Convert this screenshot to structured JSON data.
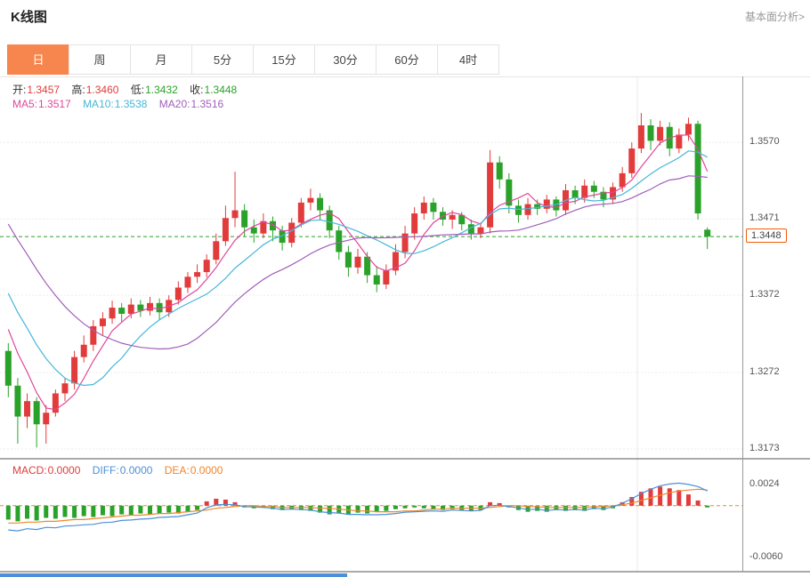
{
  "header": {
    "title": "K线图",
    "analysis_link": "基本面分析>"
  },
  "tabs": [
    {
      "label": "日",
      "name": "day",
      "active": true
    },
    {
      "label": "周",
      "name": "week",
      "active": false
    },
    {
      "label": "月",
      "name": "month",
      "active": false
    },
    {
      "label": "5分",
      "name": "5min",
      "active": false
    },
    {
      "label": "15分",
      "name": "15min",
      "active": false
    },
    {
      "label": "30分",
      "name": "30min",
      "active": false
    },
    {
      "label": "60分",
      "name": "60min",
      "active": false
    },
    {
      "label": "4时",
      "name": "4hour",
      "active": false
    }
  ],
  "kline_legend": {
    "open_label": "开:",
    "open": "1.3457",
    "high_label": "高:",
    "high": "1.3460",
    "low_label": "低:",
    "low": "1.3432",
    "close_label": "收:",
    "close": "1.3448"
  },
  "ma_legend": {
    "ma5_label": "MA5:",
    "ma5": "1.3517",
    "ma10_label": "MA10:",
    "ma10": "1.3538",
    "ma20_label": "MA20:",
    "ma20": "1.3516"
  },
  "macd_legend": {
    "macd_label": "MACD:",
    "macd": "0.0000",
    "diff_label": "DIFF:",
    "diff": "0.0000",
    "dea_label": "DEA:",
    "dea": "0.0000"
  },
  "axis": {
    "current_label": "1.3448"
  },
  "colors": {
    "up": "#e23b3b",
    "down": "#2aa22a",
    "ma5": "#e0469b",
    "ma10": "#45b7d8",
    "ma20": "#a05fb8",
    "diff": "#4a90d9",
    "dea": "#f0862a",
    "accent": "#f7854e",
    "tag_border": "#f25c05"
  },
  "chart_data": {
    "type": "candlestick",
    "title": "K线图",
    "legend_position": "top-left",
    "grid": true,
    "price_ticks": [
      1.357,
      1.3471,
      1.3372,
      1.3272,
      1.3173
    ],
    "current_price": 1.3448,
    "price_range": [
      1.3165,
      1.3653
    ],
    "macd_ticks": [
      0.0024,
      -0.006
    ],
    "macd_range": [
      -0.0075,
      0.005
    ],
    "ma_periods": [
      5,
      10,
      20
    ],
    "ma_history_closes": [
      1.364,
      1.3625,
      1.361,
      1.3595,
      1.358,
      1.356,
      1.3545,
      1.353,
      1.3515,
      1.35,
      1.348,
      1.346,
      1.344,
      1.342,
      1.34,
      1.3385,
      1.337,
      1.3355,
      1.334,
      1.332
    ],
    "candles": [
      [
        1.33,
        1.331,
        1.324,
        1.3255
      ],
      [
        1.3255,
        1.3265,
        1.318,
        1.3215
      ],
      [
        1.3215,
        1.3245,
        1.32,
        1.3235
      ],
      [
        1.3235,
        1.324,
        1.3175,
        1.3205
      ],
      [
        1.3205,
        1.323,
        1.318,
        1.322
      ],
      [
        1.322,
        1.325,
        1.3215,
        1.3245
      ],
      [
        1.3245,
        1.3265,
        1.3235,
        1.3258
      ],
      [
        1.3258,
        1.33,
        1.325,
        1.3292
      ],
      [
        1.3292,
        1.332,
        1.3285,
        1.3308
      ],
      [
        1.3308,
        1.334,
        1.33,
        1.3332
      ],
      [
        1.3332,
        1.335,
        1.332,
        1.3342
      ],
      [
        1.3342,
        1.3365,
        1.3335,
        1.3356
      ],
      [
        1.3356,
        1.3362,
        1.3338,
        1.3348
      ],
      [
        1.3348,
        1.3368,
        1.3342,
        1.336
      ],
      [
        1.336,
        1.3366,
        1.3344,
        1.3352
      ],
      [
        1.3352,
        1.337,
        1.3346,
        1.3362
      ],
      [
        1.3362,
        1.3368,
        1.334,
        1.335
      ],
      [
        1.335,
        1.3372,
        1.3344,
        1.3366
      ],
      [
        1.3366,
        1.339,
        1.336,
        1.3382
      ],
      [
        1.3382,
        1.3402,
        1.3375,
        1.3396
      ],
      [
        1.3396,
        1.3412,
        1.3388,
        1.3402
      ],
      [
        1.3402,
        1.3425,
        1.3395,
        1.3418
      ],
      [
        1.3418,
        1.3452,
        1.3412,
        1.3442
      ],
      [
        1.3442,
        1.3488,
        1.3436,
        1.3472
      ],
      [
        1.3472,
        1.3532,
        1.346,
        1.3482
      ],
      [
        1.3482,
        1.349,
        1.3448,
        1.346
      ],
      [
        1.346,
        1.347,
        1.344,
        1.3452
      ],
      [
        1.3452,
        1.3478,
        1.3446,
        1.3468
      ],
      [
        1.3468,
        1.3474,
        1.3442,
        1.3456
      ],
      [
        1.3456,
        1.3462,
        1.343,
        1.344
      ],
      [
        1.344,
        1.3472,
        1.3434,
        1.3466
      ],
      [
        1.3466,
        1.3498,
        1.346,
        1.3492
      ],
      [
        1.3492,
        1.351,
        1.3482,
        1.3498
      ],
      [
        1.3498,
        1.3504,
        1.347,
        1.3482
      ],
      [
        1.3482,
        1.3488,
        1.3446,
        1.3456
      ],
      [
        1.3456,
        1.3462,
        1.3418,
        1.3428
      ],
      [
        1.3428,
        1.3436,
        1.3396,
        1.3408
      ],
      [
        1.3408,
        1.3432,
        1.34,
        1.3422
      ],
      [
        1.3422,
        1.3428,
        1.3388,
        1.3398
      ],
      [
        1.3398,
        1.341,
        1.3376,
        1.3386
      ],
      [
        1.3386,
        1.3412,
        1.338,
        1.3404
      ],
      [
        1.3404,
        1.3438,
        1.3398,
        1.3428
      ],
      [
        1.3428,
        1.3462,
        1.342,
        1.3452
      ],
      [
        1.3452,
        1.3486,
        1.3444,
        1.3478
      ],
      [
        1.3478,
        1.35,
        1.347,
        1.3492
      ],
      [
        1.3492,
        1.3498,
        1.347,
        1.348
      ],
      [
        1.348,
        1.3486,
        1.3462,
        1.347
      ],
      [
        1.347,
        1.3482,
        1.3458,
        1.3476
      ],
      [
        1.3476,
        1.348,
        1.3456,
        1.3464
      ],
      [
        1.3464,
        1.347,
        1.3444,
        1.3452
      ],
      [
        1.3452,
        1.3466,
        1.3446,
        1.346
      ],
      [
        1.346,
        1.356,
        1.3452,
        1.3544
      ],
      [
        1.3544,
        1.3552,
        1.351,
        1.3522
      ],
      [
        1.3522,
        1.353,
        1.3478,
        1.3488
      ],
      [
        1.3488,
        1.3496,
        1.3466,
        1.3476
      ],
      [
        1.3476,
        1.3498,
        1.347,
        1.349
      ],
      [
        1.349,
        1.3496,
        1.3476,
        1.3484
      ],
      [
        1.3484,
        1.3502,
        1.3478,
        1.3496
      ],
      [
        1.3496,
        1.35,
        1.3474,
        1.3482
      ],
      [
        1.3482,
        1.3516,
        1.3476,
        1.3508
      ],
      [
        1.3508,
        1.3514,
        1.349,
        1.3498
      ],
      [
        1.3498,
        1.3522,
        1.3492,
        1.3514
      ],
      [
        1.3514,
        1.352,
        1.3498,
        1.3506
      ],
      [
        1.3506,
        1.3512,
        1.3486,
        1.3496
      ],
      [
        1.3496,
        1.3518,
        1.349,
        1.3512
      ],
      [
        1.3512,
        1.3538,
        1.3506,
        1.353
      ],
      [
        1.353,
        1.357,
        1.3524,
        1.3562
      ],
      [
        1.3562,
        1.3608,
        1.3556,
        1.3592
      ],
      [
        1.3592,
        1.36,
        1.356,
        1.3572
      ],
      [
        1.3572,
        1.3598,
        1.3566,
        1.359
      ],
      [
        1.359,
        1.3596,
        1.3552,
        1.3562
      ],
      [
        1.3562,
        1.3588,
        1.3556,
        1.358
      ],
      [
        1.358,
        1.3602,
        1.3572,
        1.3594
      ],
      [
        1.3594,
        1.3598,
        1.347,
        1.3478
      ],
      [
        1.3457,
        1.346,
        1.3432,
        1.3448
      ]
    ],
    "macd_hist": [
      -0.0016,
      -0.0018,
      -0.0015,
      -0.0017,
      -0.0014,
      -0.0015,
      -0.0013,
      -0.0014,
      -0.0012,
      -0.0013,
      -0.0011,
      -0.0012,
      -0.001,
      -0.0011,
      -0.0009,
      -0.001,
      -0.0009,
      -0.0008,
      -0.0009,
      -0.0007,
      -0.0005,
      0.0005,
      0.0008,
      0.0007,
      0.0004,
      -0.0002,
      -0.0003,
      -0.0002,
      -0.0004,
      -0.0005,
      -0.0004,
      -0.0005,
      -0.0006,
      -0.0008,
      -0.001,
      -0.0009,
      -0.001,
      -0.0008,
      -0.0009,
      -0.0007,
      -0.0006,
      -0.0004,
      -0.0003,
      -0.0002,
      -0.0003,
      -0.0004,
      -0.0005,
      -0.0004,
      -0.0005,
      -0.0006,
      -0.0005,
      0.0004,
      0.0003,
      -0.0002,
      -0.0005,
      -0.0007,
      -0.0006,
      -0.0007,
      -0.0005,
      -0.0006,
      -0.0005,
      -0.0006,
      -0.0004,
      -0.0005,
      -0.0003,
      0.0004,
      0.001,
      0.0016,
      0.002,
      0.0022,
      0.002,
      0.0018,
      0.0013,
      0.0006,
      -0.0002
    ],
    "macd_dea": [
      -0.002,
      -0.002,
      -0.0019,
      -0.0019,
      -0.0018,
      -0.0018,
      -0.0017,
      -0.0016,
      -0.0016,
      -0.0015,
      -0.0014,
      -0.0013,
      -0.0012,
      -0.0011,
      -0.0011,
      -0.001,
      -0.0009,
      -0.0009,
      -0.0008,
      -0.0007,
      -0.0006,
      -0.0005,
      -0.0003,
      -0.0002,
      -0.0001,
      0.0,
      0.0,
      -0.0001,
      -0.0001,
      -0.0002,
      -0.0002,
      -0.0002,
      -0.0002,
      -0.0003,
      -0.0003,
      -0.0004,
      -0.0005,
      -0.0006,
      -0.0006,
      -0.0007,
      -0.0007,
      -0.0007,
      -0.0006,
      -0.0006,
      -0.0005,
      -0.0004,
      -0.0004,
      -0.0003,
      -0.0003,
      -0.0003,
      -0.0003,
      -0.0002,
      -0.0001,
      0.0,
      0.0,
      -0.0001,
      -0.0001,
      -0.0002,
      -0.0002,
      -0.0002,
      -0.0002,
      -0.0002,
      -0.0001,
      -0.0001,
      0.0,
      0.0001,
      0.0003,
      0.0006,
      0.0009,
      0.0012,
      0.0015,
      0.0017,
      0.0018,
      0.0019,
      0.0018
    ]
  }
}
